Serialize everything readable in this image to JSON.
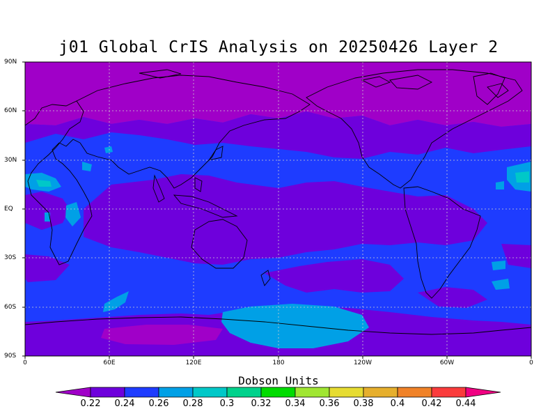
{
  "title": "j01 Global CrIS Analysis on 20250426 Layer 2",
  "lat_labels": [
    "90N",
    "60N",
    "30N",
    "EQ",
    "30S",
    "60S",
    "90S"
  ],
  "lon_labels": [
    "0",
    "60E",
    "120E",
    "180",
    "120W",
    "60W",
    "0"
  ],
  "colorbar": {
    "title": "Dobson Units",
    "ticks": [
      "0.22",
      "0.24",
      "0.26",
      "0.28",
      "0.3",
      "0.32",
      "0.34",
      "0.36",
      "0.38",
      "0.4",
      "0.42",
      "0.44"
    ],
    "colors": [
      "#a000c8",
      "#6e00dc",
      "#1e3cff",
      "#00a0e6",
      "#00c8c8",
      "#00d28c",
      "#00dc00",
      "#a0e632",
      "#e6dc32",
      "#e6af2d",
      "#f08228",
      "#fa3c3c",
      "#f00082"
    ]
  },
  "map_colors": {
    "magenta": "#a000c8",
    "purple": "#6e00dc",
    "blue": "#1e3cff",
    "cyan": "#00a0e6",
    "teal": "#00c8c8"
  }
}
